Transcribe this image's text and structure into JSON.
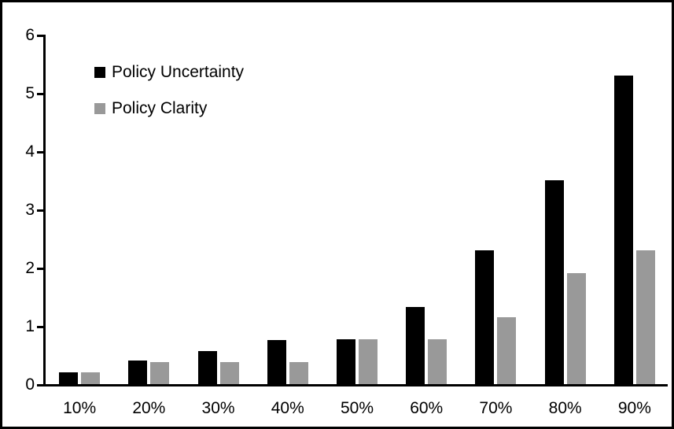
{
  "chart_data": {
    "type": "bar",
    "categories": [
      "10%",
      "20%",
      "30%",
      "40%",
      "50%",
      "60%",
      "70%",
      "80%",
      "90%"
    ],
    "series": [
      {
        "name": "Policy Uncertainty",
        "color": "#000000",
        "values": [
          0.2,
          0.4,
          0.57,
          0.75,
          0.77,
          1.33,
          2.3,
          3.5,
          5.3
        ]
      },
      {
        "name": "Policy Clarity",
        "color": "#999999",
        "values": [
          0.2,
          0.38,
          0.38,
          0.38,
          0.77,
          0.77,
          1.15,
          1.9,
          2.3
        ]
      }
    ],
    "title": "",
    "xlabel": "",
    "ylabel": "",
    "ylim": [
      0,
      6
    ],
    "yticks": [
      0,
      1,
      2,
      3,
      4,
      5,
      6
    ],
    "grid": false,
    "legend_position": "upper-left-inside",
    "frame_color": "#000000",
    "background_color": "#ffffff"
  }
}
